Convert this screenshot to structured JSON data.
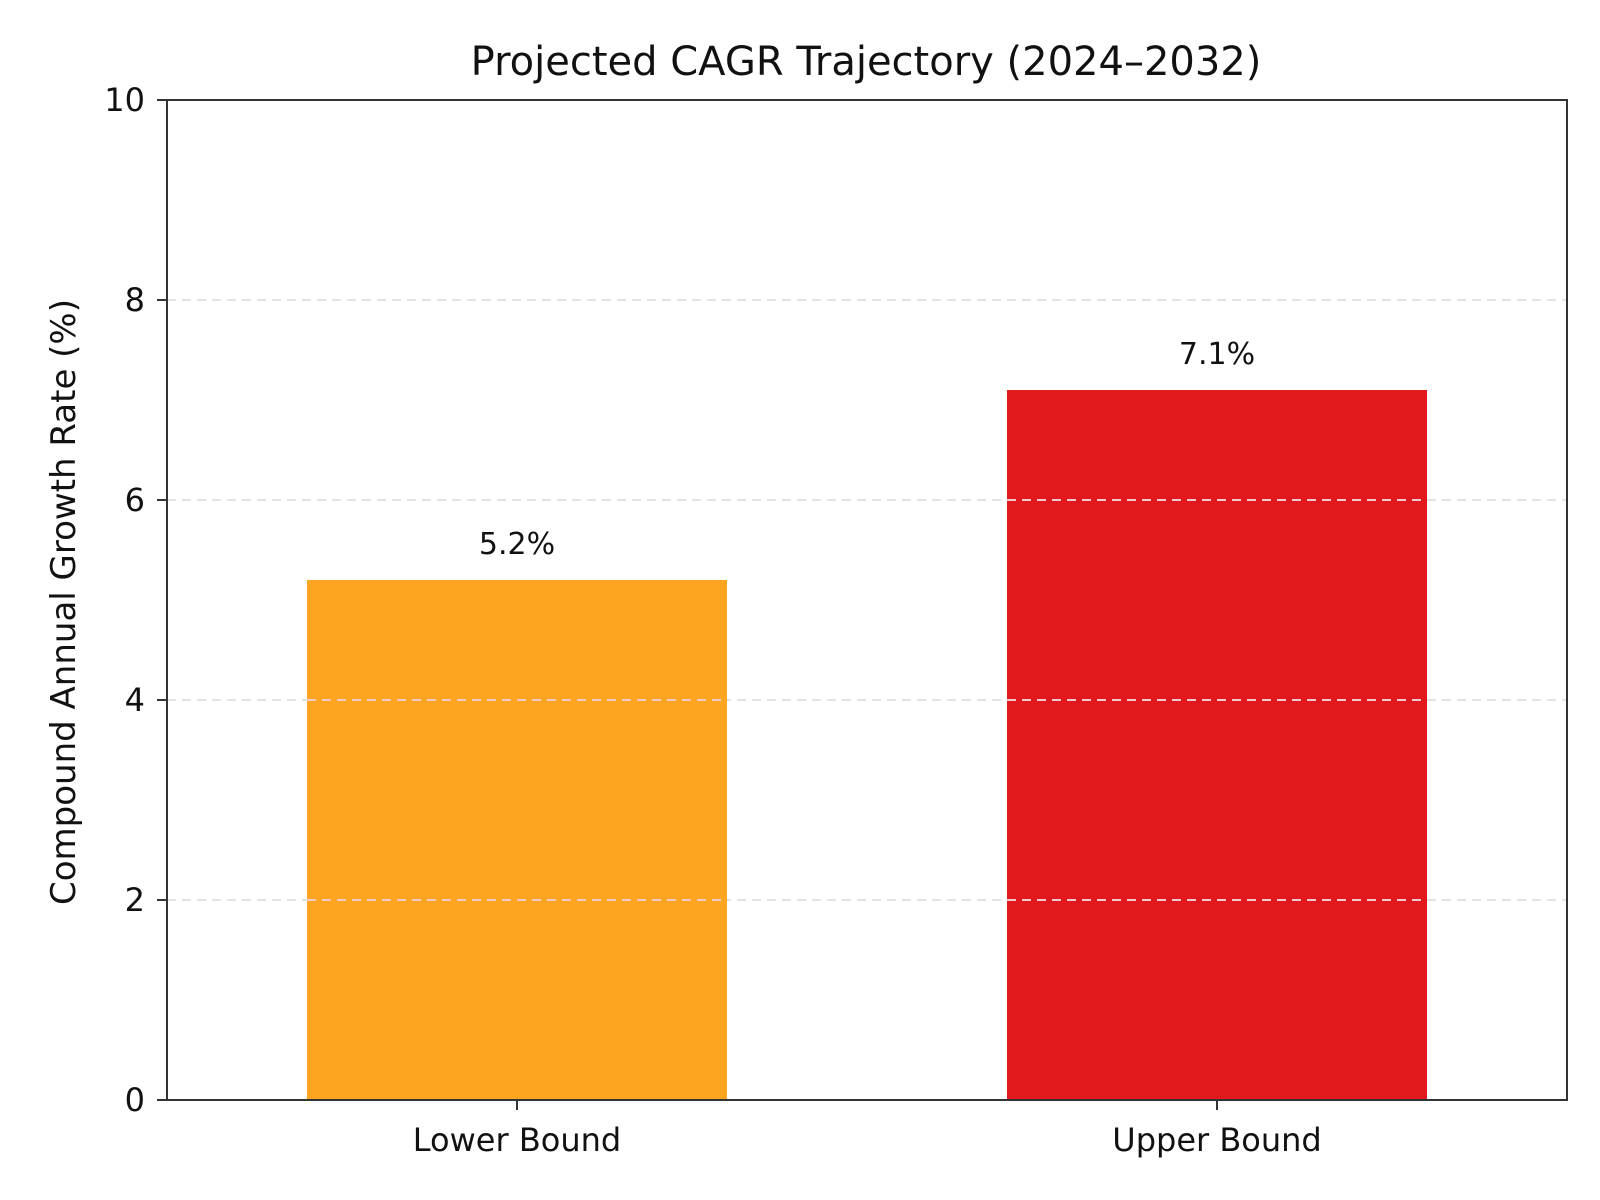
{
  "colors": {
    "lower_bound": "#FDA521",
    "upper_bound": "#E1191F",
    "grid": "#e3e3e3",
    "axis": "#333333"
  },
  "chart_data": {
    "type": "bar",
    "title": "Projected CAGR Trajectory (2024–2032)",
    "xlabel": "",
    "ylabel": "Compound Annual Growth Rate (%)",
    "categories": [
      "Lower Bound",
      "Upper Bound"
    ],
    "values": [
      5.2,
      7.1
    ],
    "value_labels": [
      "5.2%",
      "7.1%"
    ],
    "bar_colors": [
      "#FDA521",
      "#E1191F"
    ],
    "ylim": [
      0,
      10
    ],
    "yticks": [
      0,
      2,
      4,
      6,
      8,
      10
    ],
    "ytick_labels": [
      "0",
      "2",
      "4",
      "6",
      "8",
      "10"
    ],
    "grid": "horizontal dashed",
    "legend": "none"
  }
}
